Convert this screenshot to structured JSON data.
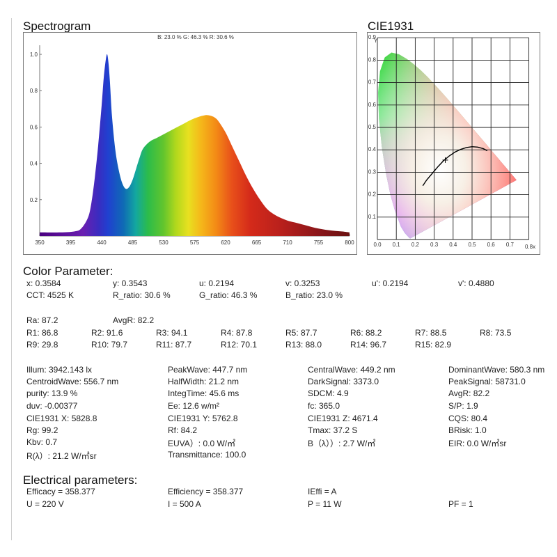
{
  "spectrogram": {
    "title": "Spectrogram",
    "ratio_text": "B: 23.0 %  G: 46.3 %  R: 30.6 %"
  },
  "cie": {
    "title": "CIE1931",
    "ylabel": "Y",
    "xlabel": "0.8x",
    "point": [
      0.3584,
      0.3543
    ]
  },
  "chart_data": {
    "type": "area",
    "title": "",
    "xlabel": "",
    "ylabel": "",
    "xlim": [
      350,
      800
    ],
    "ylim": [
      0,
      1.05
    ],
    "x_ticks": [
      350,
      395,
      440,
      485,
      530,
      575,
      620,
      665,
      710,
      755,
      800
    ],
    "y_ticks": [
      0.2,
      0.4,
      0.6,
      0.8,
      1.0
    ],
    "series": [
      {
        "x": [
          350,
          380,
          400,
          410,
          420,
          425,
          430,
          435,
          440,
          443,
          446,
          448,
          450,
          452,
          455,
          460,
          465,
          470,
          475,
          480,
          485,
          490,
          495,
          500,
          510,
          520,
          530,
          540,
          550,
          560,
          570,
          580,
          590,
          595,
          600,
          605,
          610,
          620,
          630,
          640,
          650,
          660,
          670,
          680,
          690,
          700,
          710,
          720,
          730,
          740,
          750,
          760,
          770,
          780,
          790,
          800
        ],
        "y": [
          0.02,
          0.02,
          0.025,
          0.04,
          0.1,
          0.18,
          0.32,
          0.5,
          0.72,
          0.87,
          0.97,
          1.0,
          0.95,
          0.85,
          0.66,
          0.47,
          0.36,
          0.29,
          0.26,
          0.27,
          0.31,
          0.37,
          0.43,
          0.48,
          0.52,
          0.54,
          0.56,
          0.58,
          0.6,
          0.62,
          0.64,
          0.655,
          0.665,
          0.665,
          0.66,
          0.65,
          0.63,
          0.57,
          0.49,
          0.41,
          0.33,
          0.26,
          0.2,
          0.15,
          0.12,
          0.1,
          0.085,
          0.075,
          0.065,
          0.055,
          0.045,
          0.038,
          0.032,
          0.028,
          0.025,
          0.02
        ]
      }
    ]
  },
  "color_parameter": {
    "title": "Color Parameter:",
    "rows": [
      [
        "x: 0.3584",
        "y: 0.3543",
        "u: 0.2194",
        "v: 0.3253",
        "u': 0.2194",
        "v': 0.4880"
      ],
      [
        "CCT: 4525 K",
        "R_ratio: 30.6 %",
        "G_ratio: 46.3 %",
        "B_ratio: 23.0 %"
      ],
      [
        "Ra: 87.2",
        "AvgR: 82.2"
      ],
      [
        "R1: 86.8",
        "R2: 91.6",
        "R3: 94.1",
        "R4: 87.8",
        "R5: 87.7",
        "R6: 88.2",
        "R7: 88.5",
        "R8: 73.5"
      ],
      [
        "R9: 29.8",
        "R10: 79.7",
        "R11: 87.7",
        "R12: 70.1",
        "R13: 88.0",
        "R14: 96.7",
        "R15: 82.9"
      ],
      [
        "Illum: 3942.143 lx",
        "PeakWave: 447.7 nm",
        "CentralWave: 449.2 nm",
        "DominantWave: 580.3 nm"
      ],
      [
        "CentroidWave: 556.7 nm",
        "HalfWidth: 21.2 nm",
        "DarkSignal: 3373.0",
        "PeakSignal: 58731.0"
      ],
      [
        "purity: 13.9 %",
        "IntegTime: 45.6 ms",
        "SDCM: 4.9",
        "AvgR: 82.2"
      ],
      [
        "duv: -0.00377",
        "Ee: 12.6 w/m²",
        "fc: 365.0",
        "S/P: 1.9"
      ],
      [
        "CIE1931 X: 5828.8",
        "CIE1931 Y: 5762.8",
        "CIE1931 Z: 4671.4",
        "CQS: 80.4"
      ],
      [
        "Rg: 99.2",
        "Rf: 84.2",
        "Tmax: 37.2 S",
        "BRisk: 1.0"
      ],
      [
        "Kbv: 0.7",
        "EUVA）: 0.0 W/㎡",
        "B（λ））: 2.7 W/㎡",
        "EIR: 0.0 W/㎡sr"
      ],
      [
        "R(λ）: 21.2 W/㎡sr",
        "Transmittance: 100.0"
      ]
    ]
  },
  "electrical": {
    "title": "Electrical parameters:",
    "rows": [
      [
        "Efficacy = 358.377",
        "Efficiency = 358.377",
        "IEffi = A"
      ],
      [
        "U = 220 V",
        "I = 500 A",
        "P = 11 W",
        "PF = 1"
      ]
    ]
  },
  "colors": {
    "frame": "#7a7a7a",
    "grid": "#222222",
    "curve": "#000000"
  }
}
